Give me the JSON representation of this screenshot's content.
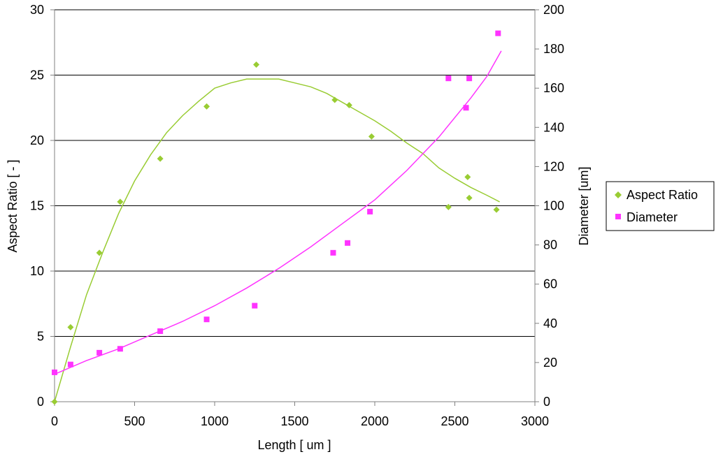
{
  "chart_data": {
    "type": "scatter",
    "xlabel": "Length [ um ]",
    "ylabel_left": "Aspect Ratio [ - ]",
    "ylabel_right": "Diameter [um]",
    "xlim": [
      0,
      3000
    ],
    "ylim_left": [
      0,
      30
    ],
    "ylim_right": [
      0,
      200
    ],
    "x_ticks": [
      0,
      500,
      1000,
      1500,
      2000,
      2500,
      3000
    ],
    "y_left_ticks": [
      0,
      5,
      10,
      15,
      20,
      25,
      30
    ],
    "y_right_ticks": [
      0,
      20,
      40,
      60,
      80,
      100,
      120,
      140,
      160,
      180,
      200
    ],
    "grid": "horizontal",
    "legend_position": "right",
    "series": [
      {
        "name": "Aspect Ratio",
        "axis": "left",
        "marker": "diamond",
        "color": "#99CC33",
        "points": [
          [
            0,
            0
          ],
          [
            100,
            5.7
          ],
          [
            280,
            11.4
          ],
          [
            410,
            15.3
          ],
          [
            660,
            18.6
          ],
          [
            950,
            22.6
          ],
          [
            1260,
            25.8
          ],
          [
            1750,
            23.1
          ],
          [
            1840,
            22.7
          ],
          [
            1980,
            20.3
          ],
          [
            2460,
            14.9
          ],
          [
            2580,
            17.2
          ],
          [
            2590,
            15.6
          ],
          [
            2760,
            14.7
          ]
        ],
        "trend": [
          [
            0,
            0
          ],
          [
            100,
            4.2
          ],
          [
            200,
            8.2
          ],
          [
            300,
            11.4
          ],
          [
            400,
            14.4
          ],
          [
            500,
            16.9
          ],
          [
            600,
            18.9
          ],
          [
            700,
            20.6
          ],
          [
            800,
            21.9
          ],
          [
            900,
            23.0
          ],
          [
            1000,
            24.0
          ],
          [
            1100,
            24.4
          ],
          [
            1200,
            24.7
          ],
          [
            1300,
            24.7
          ],
          [
            1400,
            24.7
          ],
          [
            1500,
            24.4
          ],
          [
            1600,
            24.1
          ],
          [
            1700,
            23.6
          ],
          [
            1800,
            22.9
          ],
          [
            1900,
            22.2
          ],
          [
            2000,
            21.5
          ],
          [
            2100,
            20.7
          ],
          [
            2200,
            19.8
          ],
          [
            2300,
            19.0
          ],
          [
            2400,
            17.9
          ],
          [
            2500,
            17.1
          ],
          [
            2600,
            16.4
          ],
          [
            2700,
            15.8
          ],
          [
            2780,
            15.3
          ]
        ]
      },
      {
        "name": "Diameter",
        "axis": "right",
        "marker": "square",
        "color": "#FF33FF",
        "points": [
          [
            0,
            15
          ],
          [
            100,
            19
          ],
          [
            280,
            25
          ],
          [
            410,
            27
          ],
          [
            660,
            36
          ],
          [
            950,
            42
          ],
          [
            1250,
            49
          ],
          [
            1740,
            76
          ],
          [
            1830,
            81
          ],
          [
            1970,
            97
          ],
          [
            2460,
            165
          ],
          [
            2570,
            150
          ],
          [
            2590,
            165
          ],
          [
            2770,
            188
          ]
        ],
        "trend": [
          [
            0,
            14
          ],
          [
            200,
            21
          ],
          [
            400,
            27
          ],
          [
            600,
            34
          ],
          [
            800,
            41
          ],
          [
            1000,
            49
          ],
          [
            1200,
            58
          ],
          [
            1400,
            68
          ],
          [
            1600,
            79
          ],
          [
            1800,
            91
          ],
          [
            2000,
            103
          ],
          [
            2200,
            118
          ],
          [
            2400,
            135
          ],
          [
            2600,
            155
          ],
          [
            2700,
            166
          ],
          [
            2790,
            179
          ]
        ]
      }
    ]
  }
}
